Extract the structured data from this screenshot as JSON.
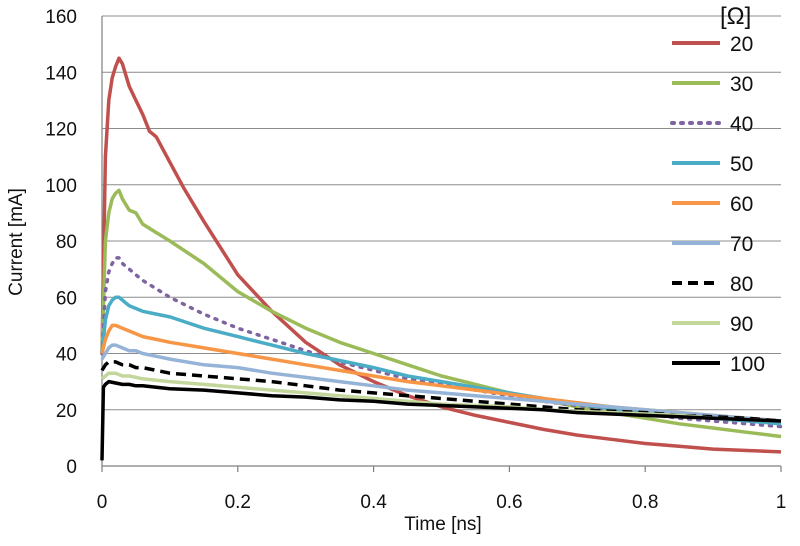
{
  "chart_data": {
    "type": "line",
    "title": "",
    "xlabel": "Time [ns]",
    "ylabel": "Current [mA]",
    "xlim": [
      0,
      1
    ],
    "ylim": [
      0,
      160
    ],
    "xticks": [
      0,
      0.2,
      0.4,
      0.6,
      0.8,
      1
    ],
    "xtick_labels": [
      "0",
      "0.2",
      "0.4",
      "0.6",
      "0.8",
      "1"
    ],
    "yticks": [
      0,
      20,
      40,
      60,
      80,
      100,
      120,
      140,
      160
    ],
    "ytick_labels": [
      "0",
      "20",
      "40",
      "60",
      "80",
      "100",
      "120",
      "140",
      "160"
    ],
    "grid": "horizontal",
    "legend_title": "[Ω]",
    "legend_position": "right",
    "series": [
      {
        "name": "20",
        "color": "#c0504d",
        "dash": "solid",
        "x": [
          0,
          0.005,
          0.01,
          0.015,
          0.02,
          0.025,
          0.03,
          0.04,
          0.05,
          0.06,
          0.07,
          0.08,
          0.1,
          0.12,
          0.15,
          0.2,
          0.25,
          0.3,
          0.35,
          0.4,
          0.45,
          0.5,
          0.55,
          0.6,
          0.65,
          0.7,
          0.75,
          0.8,
          0.85,
          0.9,
          0.95,
          1.0
        ],
        "y": [
          40,
          110,
          130,
          138,
          142,
          145,
          143,
          135,
          130,
          125,
          119,
          117,
          108,
          99,
          87,
          68,
          55,
          44,
          36,
          30,
          25,
          21,
          18,
          15.5,
          13,
          11,
          9.5,
          8,
          7,
          6,
          5.5,
          5
        ]
      },
      {
        "name": "30",
        "color": "#9bbb59",
        "dash": "solid",
        "x": [
          0,
          0.005,
          0.01,
          0.015,
          0.02,
          0.025,
          0.03,
          0.04,
          0.05,
          0.06,
          0.08,
          0.1,
          0.15,
          0.2,
          0.25,
          0.3,
          0.35,
          0.4,
          0.45,
          0.5,
          0.55,
          0.6,
          0.65,
          0.7,
          0.75,
          0.8,
          0.85,
          0.9,
          0.95,
          1.0
        ],
        "y": [
          40,
          80,
          90,
          95,
          97,
          98,
          95,
          91,
          90,
          86,
          83,
          80,
          72,
          62,
          55,
          49,
          44,
          40,
          36,
          32,
          29,
          26,
          23.5,
          21,
          19,
          17,
          15,
          13.5,
          12,
          10.5
        ]
      },
      {
        "name": "40",
        "color": "#8064a2",
        "dash": "dot",
        "x": [
          0,
          0.005,
          0.01,
          0.015,
          0.02,
          0.025,
          0.03,
          0.04,
          0.05,
          0.06,
          0.08,
          0.1,
          0.15,
          0.2,
          0.25,
          0.3,
          0.35,
          0.4,
          0.45,
          0.5,
          0.55,
          0.6,
          0.65,
          0.7,
          0.75,
          0.8,
          0.85,
          0.9,
          0.95,
          1.0
        ],
        "y": [
          40,
          62,
          69,
          72,
          74,
          74,
          72,
          70,
          68,
          66,
          63,
          60,
          54,
          49,
          45,
          41,
          37,
          34,
          31,
          29,
          27,
          25,
          23,
          21.5,
          20,
          18.5,
          17,
          16,
          15,
          14
        ]
      },
      {
        "name": "50",
        "color": "#4bacc6",
        "dash": "solid",
        "x": [
          0,
          0.005,
          0.01,
          0.015,
          0.02,
          0.025,
          0.03,
          0.04,
          0.05,
          0.06,
          0.08,
          0.1,
          0.15,
          0.2,
          0.25,
          0.3,
          0.35,
          0.4,
          0.45,
          0.5,
          0.55,
          0.6,
          0.65,
          0.7,
          0.75,
          0.8,
          0.85,
          0.9,
          0.95,
          1.0
        ],
        "y": [
          40,
          52,
          57,
          59,
          60,
          60,
          59,
          57,
          56,
          55,
          54,
          53,
          49,
          46,
          43,
          40,
          37.5,
          35,
          32,
          30,
          28,
          26,
          24,
          22,
          20.5,
          19,
          18,
          17,
          16,
          15
        ]
      },
      {
        "name": "60",
        "color": "#f79646",
        "dash": "solid",
        "x": [
          0,
          0.005,
          0.01,
          0.015,
          0.02,
          0.03,
          0.04,
          0.05,
          0.06,
          0.08,
          0.1,
          0.15,
          0.2,
          0.25,
          0.3,
          0.35,
          0.4,
          0.45,
          0.5,
          0.55,
          0.6,
          0.65,
          0.7,
          0.75,
          0.8,
          0.85,
          0.9,
          0.95,
          1.0
        ],
        "y": [
          40,
          45,
          48,
          50,
          50,
          49,
          48,
          47,
          46,
          45,
          44,
          42,
          40,
          38,
          36,
          34,
          32,
          30,
          28.5,
          27,
          25.5,
          24,
          22.5,
          21,
          20,
          19,
          18,
          17,
          16
        ]
      },
      {
        "name": "70",
        "color": "#95b3d7",
        "dash": "solid",
        "x": [
          0,
          0.005,
          0.01,
          0.015,
          0.02,
          0.03,
          0.04,
          0.05,
          0.06,
          0.08,
          0.1,
          0.15,
          0.2,
          0.25,
          0.3,
          0.35,
          0.4,
          0.45,
          0.5,
          0.55,
          0.6,
          0.65,
          0.7,
          0.75,
          0.8,
          0.85,
          0.9,
          0.95,
          1.0
        ],
        "y": [
          38,
          40,
          42,
          43,
          43,
          42,
          41,
          41,
          40,
          39,
          38,
          36,
          35,
          33,
          31.5,
          30,
          28.5,
          27,
          26,
          25,
          24,
          23,
          22,
          21,
          20,
          19,
          18,
          17,
          16
        ]
      },
      {
        "name": "80",
        "color": "#000000",
        "dash": "dash",
        "x": [
          0,
          0.005,
          0.01,
          0.015,
          0.02,
          0.03,
          0.04,
          0.05,
          0.06,
          0.08,
          0.1,
          0.15,
          0.2,
          0.25,
          0.3,
          0.35,
          0.4,
          0.45,
          0.5,
          0.55,
          0.6,
          0.65,
          0.7,
          0.75,
          0.8,
          0.85,
          0.9,
          0.95,
          1.0
        ],
        "y": [
          34,
          36,
          37,
          37,
          37,
          36,
          36,
          35,
          35,
          34,
          33,
          32,
          31,
          30,
          28.5,
          27,
          26,
          25,
          24,
          23,
          22,
          21,
          20,
          19.5,
          19,
          18,
          17.5,
          17,
          16
        ]
      },
      {
        "name": "90",
        "color": "#c3d69b",
        "dash": "solid",
        "x": [
          0,
          0.005,
          0.01,
          0.015,
          0.02,
          0.03,
          0.04,
          0.05,
          0.06,
          0.08,
          0.1,
          0.15,
          0.2,
          0.25,
          0.3,
          0.35,
          0.4,
          0.45,
          0.5,
          0.55,
          0.6,
          0.65,
          0.7,
          0.75,
          0.8,
          0.85,
          0.9,
          0.95,
          1.0
        ],
        "y": [
          31,
          32,
          33,
          33,
          33,
          32,
          32,
          31.5,
          31,
          30.5,
          30,
          29,
          28,
          27,
          26,
          25,
          24,
          23,
          22,
          21.5,
          21,
          20,
          19.5,
          19,
          18.5,
          18,
          17,
          16.5,
          16
        ]
      },
      {
        "name": "100",
        "color": "#000000",
        "dash": "solid",
        "x": [
          0,
          0.002,
          0.005,
          0.01,
          0.02,
          0.03,
          0.04,
          0.05,
          0.06,
          0.08,
          0.1,
          0.15,
          0.2,
          0.25,
          0.3,
          0.35,
          0.4,
          0.45,
          0.5,
          0.55,
          0.6,
          0.65,
          0.7,
          0.75,
          0.8,
          0.85,
          0.9,
          0.95,
          1.0
        ],
        "y": [
          2,
          28,
          29,
          30,
          29.5,
          29,
          29,
          28.5,
          28.5,
          28,
          27.5,
          27,
          26,
          25,
          24.5,
          23.5,
          23,
          22,
          21.5,
          21,
          20.5,
          20,
          19,
          18.5,
          18,
          17.5,
          17,
          16.5,
          16
        ]
      }
    ]
  }
}
